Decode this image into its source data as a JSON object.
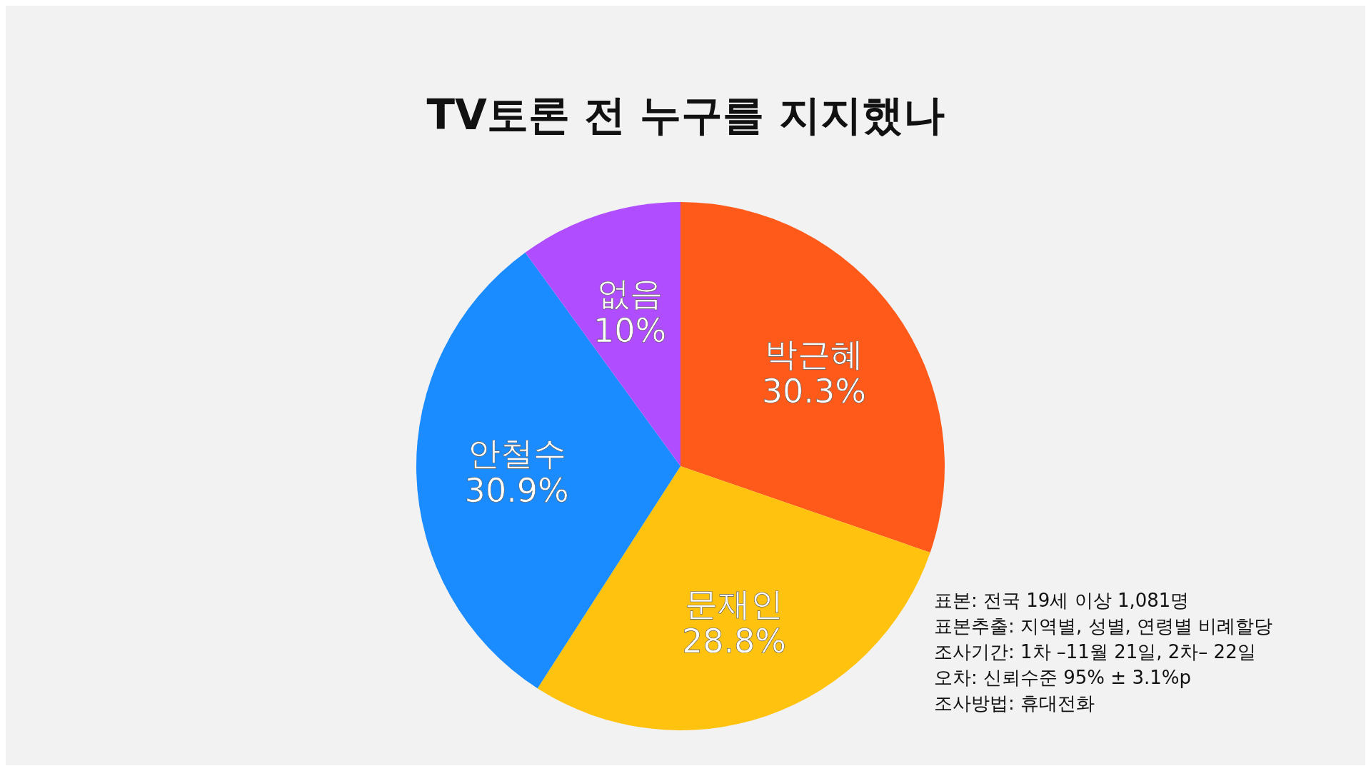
{
  "chart_data": {
    "type": "pie",
    "title": "TV토론 전 누구를 지지했나",
    "categories": [
      "박근혜",
      "문재인",
      "안철수",
      "없음"
    ],
    "values": [
      30.3,
      28.8,
      30.9,
      10
    ],
    "value_labels": [
      "30.3%",
      "28.8%",
      "30.9%",
      "10%"
    ],
    "colors": [
      "#ff5a1a",
      "#ffc20e",
      "#1a8cff",
      "#b04dff"
    ],
    "annotations": [
      "표본: 전국 19세 이상 1,081명",
      "표본추출: 지역별, 성별, 연령별 비례할당",
      "조사기간: 1차 –11월 21일, 2차– 22일",
      "오차: 신뢰수준 95% ± 3.1%p",
      "조사방법: 휴대전화"
    ]
  }
}
